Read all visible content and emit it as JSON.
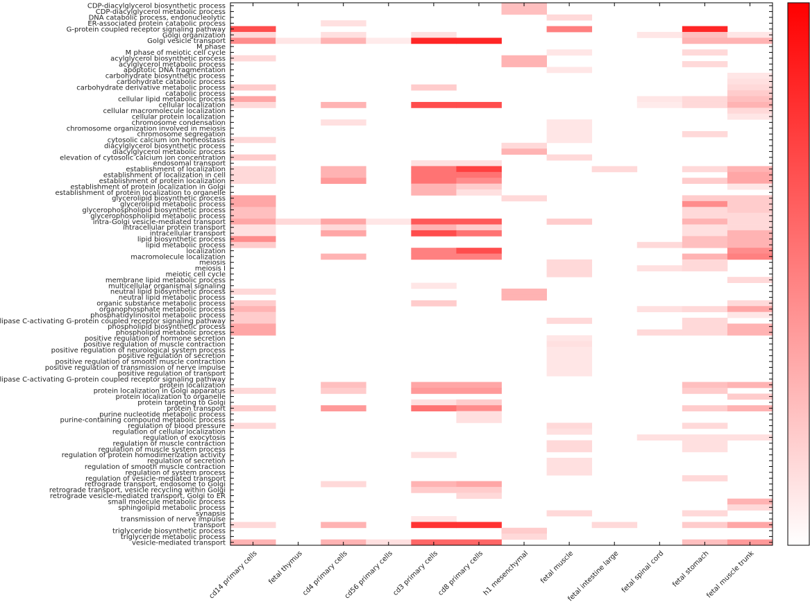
{
  "chart_data": {
    "type": "heatmap",
    "x_categories": [
      "cd14 primary cells",
      "fetal thymus",
      "cd4 primary cells",
      "cd56 primary cells",
      "cd3 primary cells",
      "cd8 primary cells",
      "h1 mesenchymal",
      "fetal muscle",
      "fetal intestine large",
      "fetal spinal cord",
      "fetal stomach",
      "fetal muscle trunk"
    ],
    "y_categories": [
      "CDP-diacylglycerol biosynthetic process",
      "CDP-diacylglycerol metabolic process",
      "DNA catabolic process, endonucleolytic",
      "ER-associated protein catabolic process",
      "G-protein coupled receptor signaling pathway",
      "Golgi organization",
      "Golgi vesicle transport",
      "M phase",
      "M phase of meiotic cell cycle",
      "acylglycerol biosynthetic process",
      "acylglycerol metabolic process",
      "apoptotic DNA fragmentation",
      "carbohydrate biosynthetic process",
      "carbohydrate catabolic process",
      "carbohydrate derivative metabolic process",
      "catabolic process",
      "cellular lipid metabolic process",
      "cellular localization",
      "cellular macromolecule localization",
      "cellular protein localization",
      "chromosome condensation",
      "chromosome organization involved in meiosis",
      "chromosome segregation",
      "cytosolic calcium ion homeostasis",
      "diacylglycerol biosynthetic process",
      "diacylglycerol metabolic process",
      "elevation of cytosolic calcium ion concentration",
      "endosomal transport",
      "establishment of localization",
      "establishment of localization in cell",
      "establishment of protein localization",
      "establishment of protein localization in Golgi",
      "establishment of protein localization to organelle",
      "glycerolipid biosynthetic process",
      "glycerolipid metabolic process",
      "glycerophospholipid biosynthetic process",
      "glycerophospholipid metabolic process",
      "intra-Golgi vesicle-mediated transport",
      "intracellular protein transport",
      "intracellular transport",
      "lipid biosynthetic process",
      "lipid metabolic process",
      "localization",
      "macromolecule localization",
      "meiosis",
      "meiosis I",
      "meiotic cell cycle",
      "membrane lipid metabolic process",
      "multicellular organismal signaling",
      "neutral lipid biosynthetic process",
      "neutral lipid metabolic process",
      "organic substance metabolic process",
      "organophosphate metabolic process",
      "phosphatidylinositol metabolic process",
      "phospholipase C-activating G-protein coupled receptor signaling pathway",
      "phospholipid biosynthetic process",
      "phospholipid metabolic process",
      "positive regulation of hormone secretion",
      "positive regulation of muscle contraction",
      "positive regulation of neurological system process",
      "positive regulation of secretion",
      "positive regulation of smooth muscle contraction",
      "positive regulation of transmission of nerve impulse",
      "positive regulation of transport",
      "phospholipase C-activating G-protein coupled receptor signaling pathway",
      "protein localization",
      "protein localization in Golgi apparatus",
      "protein localization to organelle",
      "protein targeting to Golgi",
      "protein transport",
      "purine nucleotide metabolic process",
      "purine-containing compound metabolic process",
      "regulation of blood pressure",
      "regulation of cellular localization",
      "regulation of exocytosis",
      "regulation of muscle contraction",
      "regulation of muscle system process",
      "regulation of protein homodimerization activity",
      "regulation of secretion",
      "regulation of smooth muscle contraction",
      "regulation of system process",
      "regulation of vesicle-mediated transport",
      "retrograde transport, endosome to Golgi",
      "retrograde transport, vesicle recycling within Golgi",
      "retrograde vesicle-mediated transport, Golgi to ER",
      "small molecule metabolic process",
      "sphingolipid metabolic process",
      "synapsis",
      "transmission of nerve impulse",
      "transport",
      "triglyceride biosynthetic process",
      "triglyceride metabolic process",
      "vesicle-mediated transport"
    ],
    "cells": [
      [
        0,
        6,
        0.25
      ],
      [
        1,
        6,
        0.25
      ],
      [
        2,
        7,
        0.15
      ],
      [
        3,
        2,
        0.12
      ],
      [
        4,
        0,
        0.7
      ],
      [
        4,
        7,
        0.5
      ],
      [
        4,
        10,
        0.85
      ],
      [
        5,
        0,
        0.15
      ],
      [
        5,
        2,
        0.12
      ],
      [
        5,
        4,
        0.12
      ],
      [
        5,
        9,
        0.1
      ],
      [
        5,
        10,
        0.25
      ],
      [
        5,
        11,
        0.1
      ],
      [
        6,
        0,
        0.45
      ],
      [
        6,
        1,
        0.1
      ],
      [
        6,
        2,
        0.3
      ],
      [
        6,
        3,
        0.08
      ],
      [
        6,
        4,
        0.85
      ],
      [
        6,
        5,
        0.85
      ],
      [
        6,
        10,
        0.3
      ],
      [
        6,
        11,
        0.3
      ],
      [
        8,
        7,
        0.1
      ],
      [
        8,
        10,
        0.15
      ],
      [
        9,
        0,
        0.15
      ],
      [
        9,
        6,
        0.3
      ],
      [
        10,
        6,
        0.3
      ],
      [
        10,
        10,
        0.15
      ],
      [
        11,
        7,
        0.1
      ],
      [
        12,
        11,
        0.1
      ],
      [
        13,
        11,
        0.12
      ],
      [
        14,
        0,
        0.2
      ],
      [
        14,
        4,
        0.2
      ],
      [
        14,
        11,
        0.15
      ],
      [
        15,
        11,
        0.2
      ],
      [
        16,
        0,
        0.35
      ],
      [
        16,
        9,
        0.1
      ],
      [
        16,
        10,
        0.15
      ],
      [
        16,
        11,
        0.25
      ],
      [
        17,
        0,
        0.15
      ],
      [
        17,
        2,
        0.3
      ],
      [
        17,
        4,
        0.7
      ],
      [
        17,
        5,
        0.7
      ],
      [
        17,
        9,
        0.08
      ],
      [
        17,
        10,
        0.15
      ],
      [
        17,
        11,
        0.3
      ],
      [
        18,
        11,
        0.15
      ],
      [
        19,
        11,
        0.1
      ],
      [
        20,
        2,
        0.12
      ],
      [
        20,
        7,
        0.1
      ],
      [
        21,
        7,
        0.1
      ],
      [
        22,
        7,
        0.1
      ],
      [
        22,
        10,
        0.15
      ],
      [
        23,
        0,
        0.15
      ],
      [
        23,
        7,
        0.1
      ],
      [
        24,
        6,
        0.15
      ],
      [
        25,
        6,
        0.3
      ],
      [
        26,
        0,
        0.2
      ],
      [
        26,
        7,
        0.15
      ],
      [
        27,
        4,
        0.12
      ],
      [
        27,
        5,
        0.12
      ],
      [
        28,
        0,
        0.15
      ],
      [
        28,
        2,
        0.3
      ],
      [
        28,
        4,
        0.55
      ],
      [
        28,
        5,
        0.75
      ],
      [
        28,
        8,
        0.15
      ],
      [
        28,
        10,
        0.15
      ],
      [
        28,
        11,
        0.3
      ],
      [
        29,
        0,
        0.15
      ],
      [
        29,
        2,
        0.3
      ],
      [
        29,
        4,
        0.55
      ],
      [
        29,
        5,
        0.55
      ],
      [
        29,
        11,
        0.35
      ],
      [
        30,
        0,
        0.15
      ],
      [
        30,
        2,
        0.4
      ],
      [
        30,
        4,
        0.55
      ],
      [
        30,
        5,
        0.45
      ],
      [
        30,
        10,
        0.2
      ],
      [
        30,
        11,
        0.35
      ],
      [
        31,
        4,
        0.3
      ],
      [
        31,
        5,
        0.2
      ],
      [
        31,
        11,
        0.1
      ],
      [
        32,
        4,
        0.3
      ],
      [
        32,
        5,
        0.12
      ],
      [
        33,
        0,
        0.35
      ],
      [
        33,
        6,
        0.15
      ],
      [
        33,
        10,
        0.2
      ],
      [
        33,
        11,
        0.2
      ],
      [
        34,
        0,
        0.35
      ],
      [
        34,
        10,
        0.45
      ],
      [
        34,
        11,
        0.2
      ],
      [
        35,
        0,
        0.25
      ],
      [
        35,
        10,
        0.15
      ],
      [
        35,
        11,
        0.2
      ],
      [
        36,
        0,
        0.25
      ],
      [
        36,
        10,
        0.15
      ],
      [
        36,
        11,
        0.15
      ],
      [
        37,
        0,
        0.35
      ],
      [
        37,
        1,
        0.15
      ],
      [
        37,
        2,
        0.35
      ],
      [
        37,
        3,
        0.1
      ],
      [
        37,
        4,
        0.65
      ],
      [
        37,
        5,
        0.65
      ],
      [
        37,
        7,
        0.2
      ],
      [
        37,
        10,
        0.3
      ],
      [
        37,
        11,
        0.15
      ],
      [
        38,
        0,
        0.12
      ],
      [
        38,
        2,
        0.15
      ],
      [
        38,
        4,
        0.3
      ],
      [
        38,
        5,
        0.2
      ],
      [
        38,
        10,
        0.12
      ],
      [
        38,
        11,
        0.15
      ],
      [
        39,
        0,
        0.12
      ],
      [
        39,
        2,
        0.35
      ],
      [
        39,
        4,
        0.7
      ],
      [
        39,
        5,
        0.55
      ],
      [
        39,
        10,
        0.12
      ],
      [
        39,
        11,
        0.3
      ],
      [
        40,
        0,
        0.45
      ],
      [
        40,
        10,
        0.25
      ],
      [
        40,
        11,
        0.3
      ],
      [
        41,
        0,
        0.2
      ],
      [
        41,
        9,
        0.15
      ],
      [
        41,
        10,
        0.25
      ],
      [
        41,
        11,
        0.3
      ],
      [
        42,
        4,
        0.5
      ],
      [
        42,
        5,
        0.7
      ],
      [
        42,
        11,
        0.45
      ],
      [
        43,
        2,
        0.3
      ],
      [
        43,
        4,
        0.5
      ],
      [
        43,
        5,
        0.5
      ],
      [
        43,
        10,
        0.3
      ],
      [
        43,
        11,
        0.5
      ],
      [
        44,
        7,
        0.15
      ],
      [
        44,
        10,
        0.15
      ],
      [
        45,
        7,
        0.15
      ],
      [
        45,
        9,
        0.12
      ],
      [
        45,
        10,
        0.15
      ],
      [
        46,
        7,
        0.15
      ],
      [
        47,
        11,
        0.15
      ],
      [
        48,
        4,
        0.1
      ],
      [
        49,
        0,
        0.15
      ],
      [
        49,
        6,
        0.3
      ],
      [
        50,
        6,
        0.3
      ],
      [
        51,
        0,
        0.2
      ],
      [
        51,
        4,
        0.2
      ],
      [
        51,
        11,
        0.15
      ],
      [
        52,
        0,
        0.3
      ],
      [
        52,
        9,
        0.12
      ],
      [
        52,
        10,
        0.15
      ],
      [
        52,
        11,
        0.35
      ],
      [
        53,
        0,
        0.2
      ],
      [
        53,
        11,
        0.1
      ],
      [
        54,
        0,
        0.2
      ],
      [
        54,
        7,
        0.15
      ],
      [
        54,
        10,
        0.15
      ],
      [
        55,
        0,
        0.35
      ],
      [
        55,
        10,
        0.15
      ],
      [
        55,
        11,
        0.3
      ],
      [
        56,
        0,
        0.35
      ],
      [
        56,
        9,
        0.15
      ],
      [
        56,
        10,
        0.15
      ],
      [
        56,
        11,
        0.3
      ],
      [
        57,
        7,
        0.1
      ],
      [
        58,
        7,
        0.12
      ],
      [
        59,
        7,
        0.1
      ],
      [
        60,
        7,
        0.1
      ],
      [
        61,
        7,
        0.1
      ],
      [
        62,
        7,
        0.1
      ],
      [
        63,
        7,
        0.1
      ],
      [
        65,
        2,
        0.25
      ],
      [
        65,
        4,
        0.35
      ],
      [
        65,
        5,
        0.35
      ],
      [
        65,
        10,
        0.25
      ],
      [
        65,
        11,
        0.3
      ],
      [
        66,
        0,
        0.15
      ],
      [
        66,
        2,
        0.2
      ],
      [
        66,
        4,
        0.4
      ],
      [
        66,
        5,
        0.4
      ],
      [
        66,
        10,
        0.2
      ],
      [
        67,
        11,
        0.2
      ],
      [
        68,
        4,
        0.12
      ],
      [
        68,
        5,
        0.2
      ],
      [
        69,
        0,
        0.2
      ],
      [
        69,
        2,
        0.4
      ],
      [
        69,
        4,
        0.55
      ],
      [
        69,
        5,
        0.45
      ],
      [
        69,
        10,
        0.2
      ],
      [
        69,
        11,
        0.3
      ],
      [
        70,
        5,
        0.12
      ],
      [
        71,
        5,
        0.12
      ],
      [
        72,
        0,
        0.15
      ],
      [
        72,
        7,
        0.15
      ],
      [
        72,
        10,
        0.15
      ],
      [
        73,
        7,
        0.12
      ],
      [
        74,
        9,
        0.12
      ],
      [
        74,
        10,
        0.12
      ],
      [
        74,
        11,
        0.12
      ],
      [
        75,
        7,
        0.15
      ],
      [
        75,
        10,
        0.12
      ],
      [
        76,
        7,
        0.15
      ],
      [
        76,
        10,
        0.12
      ],
      [
        77,
        4,
        0.12
      ],
      [
        78,
        7,
        0.12
      ],
      [
        79,
        7,
        0.12
      ],
      [
        80,
        7,
        0.12
      ],
      [
        81,
        10,
        0.15
      ],
      [
        82,
        2,
        0.15
      ],
      [
        82,
        4,
        0.3
      ],
      [
        82,
        5,
        0.35
      ],
      [
        83,
        4,
        0.2
      ],
      [
        83,
        5,
        0.2
      ],
      [
        84,
        5,
        0.15
      ],
      [
        85,
        11,
        0.3
      ],
      [
        86,
        11,
        0.15
      ],
      [
        87,
        7,
        0.15
      ],
      [
        87,
        10,
        0.15
      ],
      [
        88,
        4,
        0.1
      ],
      [
        89,
        0,
        0.15
      ],
      [
        89,
        2,
        0.3
      ],
      [
        89,
        4,
        0.8
      ],
      [
        89,
        5,
        0.8
      ],
      [
        89,
        8,
        0.15
      ],
      [
        89,
        10,
        0.2
      ],
      [
        89,
        11,
        0.35
      ],
      [
        90,
        6,
        0.2
      ],
      [
        91,
        6,
        0.15
      ],
      [
        92,
        0,
        0.3
      ],
      [
        92,
        2,
        0.3
      ],
      [
        92,
        3,
        0.12
      ],
      [
        92,
        4,
        0.6
      ],
      [
        92,
        5,
        0.6
      ],
      [
        92,
        10,
        0.25
      ],
      [
        92,
        11,
        0.4
      ]
    ],
    "value_range": [
      0,
      1
    ],
    "colorscale": [
      "#ffffff",
      "#ff0000"
    ]
  }
}
